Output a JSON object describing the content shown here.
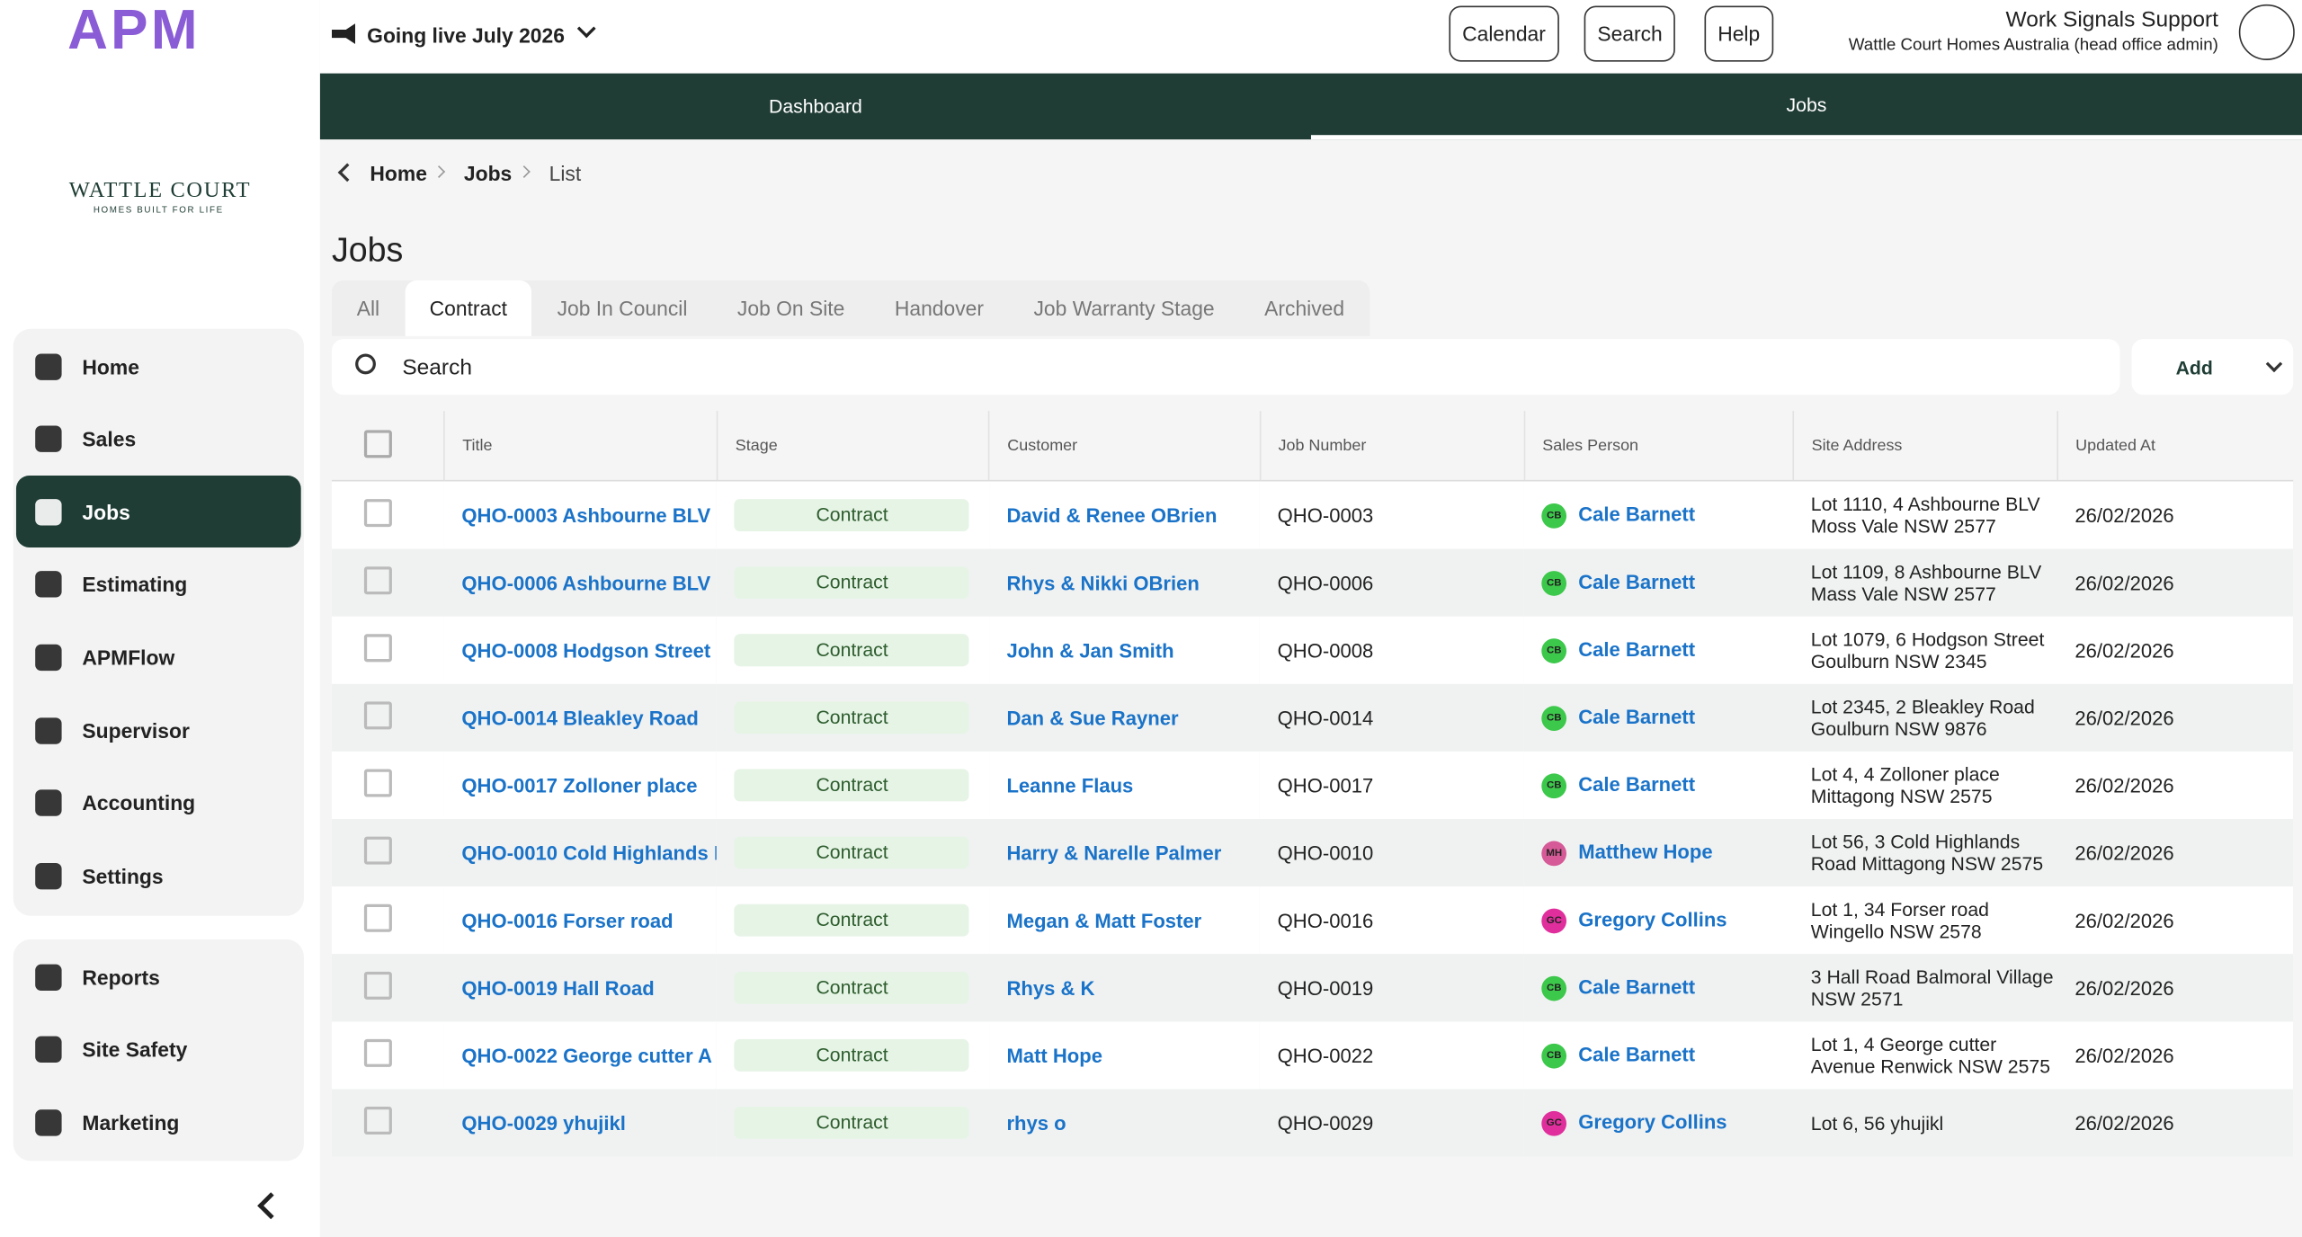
{
  "logo": {
    "app": "APM",
    "brand": "WATTLE COURT",
    "tagline": "HOMES BUILT FOR LIFE"
  },
  "header": {
    "announcement": "Going live July 2026",
    "buttons": [
      "Calendar",
      "Search",
      "Help"
    ],
    "user_name": "Work Signals Support",
    "user_org": "Wattle Court Homes Australia (head office admin)"
  },
  "top_tabs": [
    "Dashboard",
    "Jobs"
  ],
  "sidebar": {
    "main": [
      "Home",
      "Sales",
      "Jobs",
      "Estimating",
      "APMFlow",
      "Supervisor",
      "Accounting",
      "Settings"
    ],
    "secondary": [
      "Reports",
      "Site Safety",
      "Marketing"
    ]
  },
  "breadcrumb": [
    "Home",
    "Jobs",
    "List"
  ],
  "page_title": "Jobs",
  "stage_tabs": [
    "All",
    "Contract",
    "Job In Council",
    "Job On Site",
    "Handover",
    "Job Warranty Stage",
    "Archived"
  ],
  "search_placeholder": "Search",
  "add_button": "Add",
  "table": {
    "columns": [
      "Title",
      "Stage",
      "Customer",
      "Job Number",
      "Sales Person",
      "Site Address",
      "Updated At"
    ],
    "rows": [
      {
        "title": "QHO-0003 Ashbourne BLV",
        "stage": "Contract",
        "customer": "David & Renee OBrien",
        "job_number": "QHO-0003",
        "initials": "CB",
        "avatar_color": "#3cc84a",
        "sales_person": "Cale Barnett",
        "address": [
          "Lot 1110, 4 Ashbourne BLV",
          "Moss Vale NSW 2577"
        ],
        "updated": "26/02/2026"
      },
      {
        "title": "QHO-0006 Ashbourne BLV",
        "stage": "Contract",
        "customer": "Rhys & Nikki OBrien",
        "job_number": "QHO-0006",
        "initials": "CB",
        "avatar_color": "#3cc84a",
        "sales_person": "Cale Barnett",
        "address": [
          "Lot 1109, 8 Ashbourne BLV",
          "Mass Vale NSW 2577"
        ],
        "updated": "26/02/2026"
      },
      {
        "title": "QHO-0008 Hodgson Street",
        "stage": "Contract",
        "customer": "John & Jan Smith",
        "job_number": "QHO-0008",
        "initials": "CB",
        "avatar_color": "#3cc84a",
        "sales_person": "Cale Barnett",
        "address": [
          "Lot 1079, 6 Hodgson Street",
          "Goulburn NSW 2345"
        ],
        "updated": "26/02/2026"
      },
      {
        "title": "QHO-0014 Bleakley Road",
        "stage": "Contract",
        "customer": "Dan & Sue Rayner",
        "job_number": "QHO-0014",
        "initials": "CB",
        "avatar_color": "#3cc84a",
        "sales_person": "Cale Barnett",
        "address": [
          "Lot 2345, 2 Bleakley Road",
          "Goulburn NSW 9876"
        ],
        "updated": "26/02/2026"
      },
      {
        "title": "QHO-0017 Zolloner place",
        "stage": "Contract",
        "customer": "Leanne Flaus",
        "job_number": "QHO-0017",
        "initials": "CB",
        "avatar_color": "#3cc84a",
        "sales_person": "Cale Barnett",
        "address": [
          "Lot 4, 4 Zolloner place",
          "Mittagong NSW 2575"
        ],
        "updated": "26/02/2026"
      },
      {
        "title": "QHO-0010 Cold Highlands I",
        "stage": "Contract",
        "customer": "Harry & Narelle Palmer",
        "job_number": "QHO-0010",
        "initials": "MH",
        "avatar_color": "#d65a97",
        "sales_person": "Matthew Hope",
        "address": [
          "Lot 56, 3 Cold Highlands",
          "Road Mittagong NSW 2575"
        ],
        "updated": "26/02/2026"
      },
      {
        "title": "QHO-0016 Forser road",
        "stage": "Contract",
        "customer": "Megan & Matt Foster",
        "job_number": "QHO-0016",
        "initials": "GC",
        "avatar_color": "#e02f9c",
        "sales_person": "Gregory Collins",
        "address": [
          "Lot 1, 34 Forser road",
          "Wingello NSW 2578"
        ],
        "updated": "26/02/2026"
      },
      {
        "title": "QHO-0019 Hall Road",
        "stage": "Contract",
        "customer": "Rhys & K",
        "job_number": "QHO-0019",
        "initials": "CB",
        "avatar_color": "#3cc84a",
        "sales_person": "Cale Barnett",
        "address": [
          "3 Hall Road Balmoral Village",
          "NSW 2571"
        ],
        "updated": "26/02/2026"
      },
      {
        "title": "QHO-0022 George cutter A",
        "stage": "Contract",
        "customer": "Matt Hope",
        "job_number": "QHO-0022",
        "initials": "CB",
        "avatar_color": "#3cc84a",
        "sales_person": "Cale Barnett",
        "address": [
          "Lot 1, 4 George cutter",
          "Avenue Renwick NSW 2575"
        ],
        "updated": "26/02/2026"
      },
      {
        "title": "QHO-0029 yhujikl",
        "stage": "Contract",
        "customer": "rhys o",
        "job_number": "QHO-0029",
        "initials": "GC",
        "avatar_color": "#e02f9c",
        "sales_person": "Gregory Collins",
        "address": [
          "Lot 6, 56 yhujikl"
        ],
        "updated": "26/02/2026"
      }
    ]
  }
}
